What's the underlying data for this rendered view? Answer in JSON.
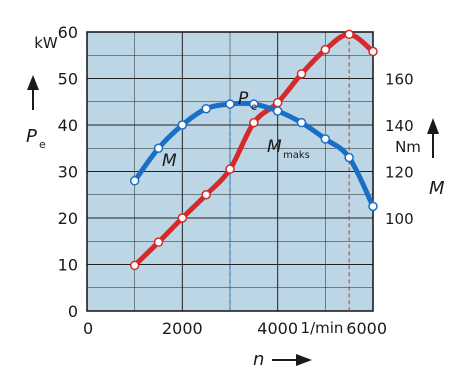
{
  "chart_data": {
    "type": "line",
    "x_axis": {
      "range": [
        0,
        6000
      ],
      "ticks": [
        0,
        2000,
        4000,
        6000
      ],
      "tick_labels": [
        "0",
        "2000",
        "4000",
        "6000"
      ],
      "unit": "1/min",
      "label": "n"
    },
    "y_axis_left": {
      "range": [
        0,
        60
      ],
      "ticks": [
        0,
        10,
        20,
        30,
        40,
        50,
        60
      ],
      "tick_labels": [
        "0",
        "10",
        "20",
        "30",
        "40",
        "50",
        "60"
      ],
      "unit": "kW",
      "label": "P",
      "label_sub": "e"
    },
    "y_axis_right": {
      "range": [
        60,
        180
      ],
      "ticks": [
        100,
        120,
        140,
        160
      ],
      "tick_labels": [
        "100",
        "120",
        "140",
        "160"
      ],
      "unit": "Nm",
      "label": "M"
    },
    "grid": true,
    "series": [
      {
        "name": "P",
        "name_sub": "e",
        "axis": "left",
        "color": "#d42a2a",
        "x": [
          1000,
          1500,
          2000,
          2500,
          3000,
          3500,
          4000,
          4500,
          5000,
          5500,
          6000
        ],
        "y": [
          9.8,
          14.8,
          20,
          25,
          30.5,
          40.5,
          44.8,
          51,
          56.2,
          59.5,
          55.8
        ]
      },
      {
        "name": "M",
        "name_sub": "",
        "axis": "right",
        "color": "#1a6fc4",
        "x": [
          1000,
          1500,
          2000,
          2500,
          3000,
          3500,
          4000,
          4500,
          5000,
          5500,
          6000
        ],
        "y": [
          116,
          130,
          140,
          147,
          149,
          149,
          146,
          141,
          134,
          126,
          105
        ]
      }
    ],
    "annotations": [
      {
        "text": "M",
        "sub": "maks"
      }
    ],
    "colors": {
      "plot_background": "#bcd6e6",
      "grid": "#222222",
      "power": "#d42a2a",
      "torque": "#1a6fc4"
    }
  }
}
